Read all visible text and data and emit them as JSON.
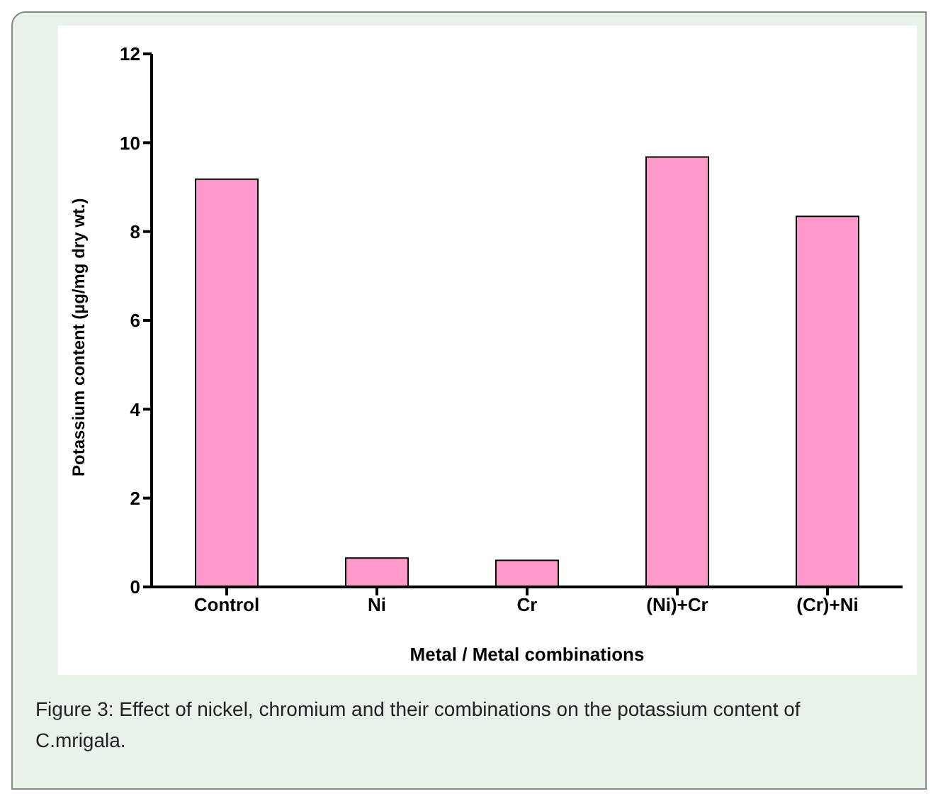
{
  "chart_data": {
    "type": "bar",
    "xlabel": "Metal / Metal combinations",
    "ylabel": "Potassium content (µg/mg dry wt.)",
    "categories": [
      "Control",
      "Ni",
      "Cr",
      "(Ni)+Cr",
      "(Cr)+Ni"
    ],
    "values": [
      9.18,
      0.65,
      0.6,
      9.68,
      8.34
    ],
    "color": "#ff99cc",
    "ylim": [
      0,
      12
    ],
    "yticks": [
      0,
      2,
      4,
      6,
      8,
      10,
      12
    ],
    "grid": false,
    "legend": false,
    "annotations": [
      "Figure 3: Effect of nickel, chromium and their combinations on the potassium content of C.mrigala."
    ]
  }
}
